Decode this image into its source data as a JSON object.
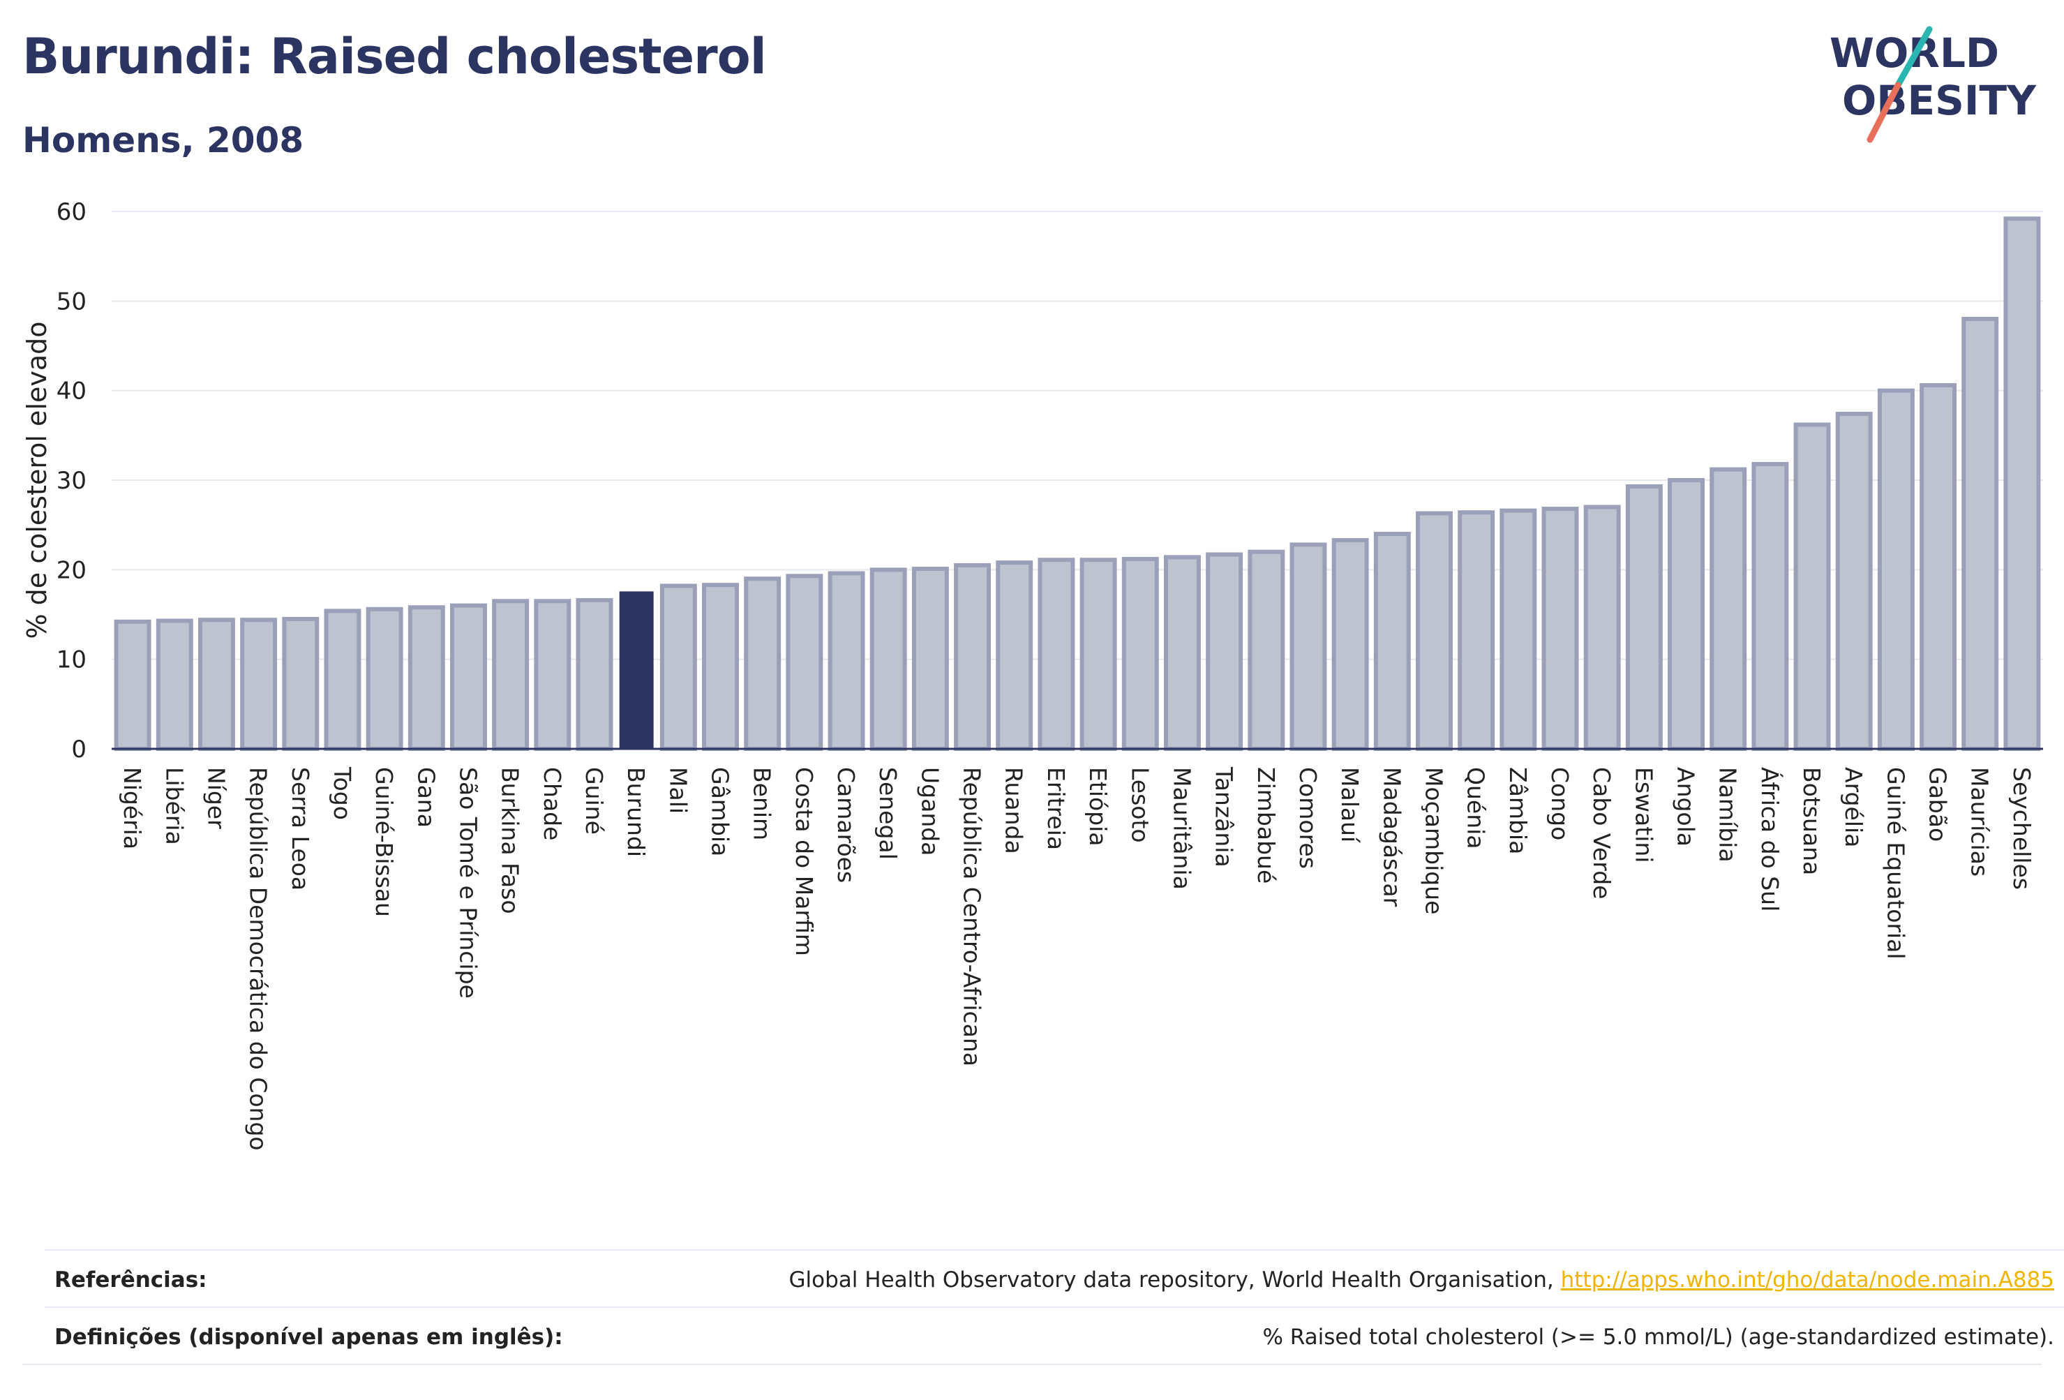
{
  "header": {
    "title": "Burundi: Raised cholesterol",
    "subtitle": "Homens, 2008"
  },
  "logo": {
    "line1": "WORLD",
    "line2": "OBESITY",
    "colors": {
      "text": "#2c3561",
      "slash_top": "#2bb5b0",
      "slash_bottom": "#e8705b"
    }
  },
  "footer": {
    "references_label": "Referências:",
    "references_text": "Global Health Observatory data repository, World Health Organisation, ",
    "references_link": "http://apps.who.int/gho/data/node.main.A885",
    "definitions_label": "Definições (disponível apenas em inglês):",
    "definitions_text": "% Raised total cholesterol (>= 5.0 mmol/L) (age-standardized estimate)."
  },
  "colors": {
    "bar_fill": "#bfc3d0",
    "bar_stroke": "#9aa0b8",
    "highlight": "#2c3561",
    "grid": "#e6e8ef",
    "axis": "#2c3561"
  },
  "chart_data": {
    "type": "bar",
    "title": "Burundi: Raised cholesterol",
    "subtitle": "Homens, 2008",
    "xlabel": "",
    "ylabel": "% de colesterol elevado",
    "ylim": [
      0,
      60
    ],
    "yticks": [
      0,
      10,
      20,
      30,
      40,
      50,
      60
    ],
    "grid": true,
    "highlight": "Burundi",
    "categories": [
      "Nigéria",
      "Libéria",
      "Níger",
      "República Democrática do Congo",
      "Serra Leoa",
      "Togo",
      "Guiné-Bissau",
      "Gana",
      "São Tomé e Príncipe",
      "Burkina Faso",
      "Chade",
      "Guiné",
      "Burundi",
      "Mali",
      "Gâmbia",
      "Benim",
      "Costa do Marfim",
      "Camarões",
      "Senegal",
      "Uganda",
      "República Centro-Africana",
      "Ruanda",
      "Eritreia",
      "Etiópia",
      "Lesoto",
      "Mauritânia",
      "Tanzânia",
      "Zimbabué",
      "Comores",
      "Malauí",
      "Madagáscar",
      "Moçambique",
      "Quénia",
      "Zâmbia",
      "Congo",
      "Cabo Verde",
      "Eswatini",
      "Angola",
      "Namíbia",
      "África do Sul",
      "Botsuana",
      "Argélia",
      "Guiné Equatorial",
      "Gabão",
      "Maurícias",
      "Seychelles"
    ],
    "values": [
      14.2,
      14.3,
      14.4,
      14.4,
      14.5,
      15.4,
      15.6,
      15.8,
      16.0,
      16.5,
      16.5,
      16.6,
      17.5,
      18.2,
      18.3,
      19.0,
      19.3,
      19.6,
      20.0,
      20.1,
      20.5,
      20.8,
      21.1,
      21.1,
      21.2,
      21.4,
      21.7,
      22.0,
      22.8,
      23.3,
      24.0,
      26.3,
      26.4,
      26.6,
      26.8,
      27.0,
      29.3,
      30.0,
      31.2,
      31.8,
      36.2,
      37.4,
      40.0,
      40.6,
      48.0,
      59.2
    ]
  }
}
